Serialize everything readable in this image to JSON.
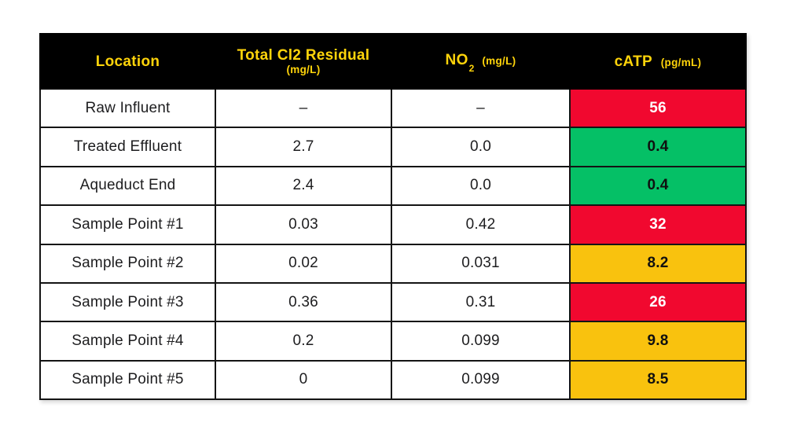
{
  "chart_data": {
    "type": "table",
    "title": "",
    "columns": [
      "Location",
      "Total Cl2 Residual (mg/L)",
      "NO2 (mg/L)",
      "cATP (pg/mL)"
    ],
    "rows": [
      {
        "location": "Raw Influent",
        "cl2": "–",
        "no2": "–",
        "catp": "56",
        "catp_status": "red"
      },
      {
        "location": "Treated Effluent",
        "cl2": "2.7",
        "no2": "0.0",
        "catp": "0.4",
        "catp_status": "green"
      },
      {
        "location": "Aqueduct End",
        "cl2": "2.4",
        "no2": "0.0",
        "catp": "0.4",
        "catp_status": "green"
      },
      {
        "location": "Sample Point #1",
        "cl2": "0.03",
        "no2": "0.42",
        "catp": "32",
        "catp_status": "red"
      },
      {
        "location": "Sample Point #2",
        "cl2": "0.02",
        "no2": "0.031",
        "catp": "8.2",
        "catp_status": "yellow"
      },
      {
        "location": "Sample Point #3",
        "cl2": "0.36",
        "no2": "0.31",
        "catp": "26",
        "catp_status": "red"
      },
      {
        "location": "Sample Point #4",
        "cl2": "0.2",
        "no2": "0.099",
        "catp": "9.8",
        "catp_status": "yellow"
      },
      {
        "location": "Sample Point #5",
        "cl2": "0",
        "no2": "0.099",
        "catp": "8.5",
        "catp_status": "yellow"
      }
    ]
  },
  "header": {
    "location": "Location",
    "cl2_title": "Total Cl2 Residual",
    "cl2_unit": "(mg/L)",
    "no2_base": "NO",
    "no2_sub": "2",
    "no2_unit": "(mg/L)",
    "catp_title": "cATP",
    "catp_unit": "(pg/mL)"
  },
  "colors": {
    "header_bg": "#000000",
    "header_text": "#FFD40A",
    "status_red": "#F1082F",
    "status_green": "#05C066",
    "status_yellow": "#F9C20E",
    "red_cell_text": "#FFFFFF",
    "body_text": "#1D1D1F"
  }
}
